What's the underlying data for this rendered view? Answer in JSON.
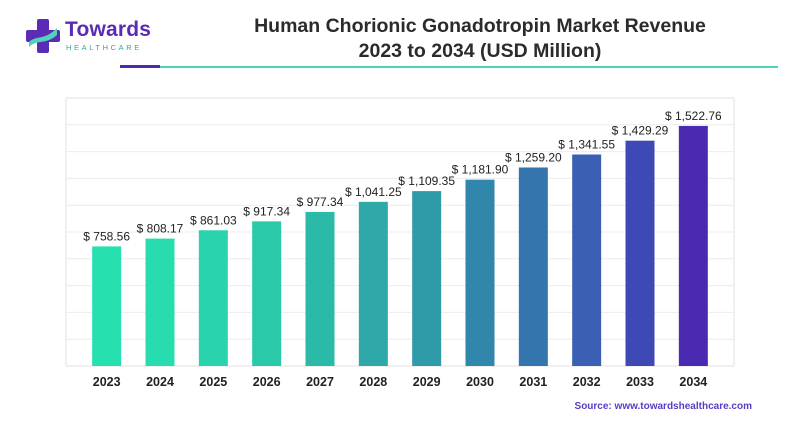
{
  "brand": {
    "name": "Towards",
    "tagline": "HEALTHCARE",
    "colors": {
      "purple": "#5b2bb6",
      "teal": "#2aa9a5"
    }
  },
  "title": {
    "line1": "Human Chorionic Gonadotropin Market Revenue",
    "line2": "2023 to 2034 (USD Million)"
  },
  "source": "Source: www.towardshealthcare.com",
  "chart_data": {
    "type": "bar",
    "categories": [
      "2023",
      "2024",
      "2025",
      "2026",
      "2027",
      "2028",
      "2029",
      "2030",
      "2031",
      "2032",
      "2033",
      "2034"
    ],
    "values": [
      758.56,
      808.17,
      861.03,
      917.34,
      977.34,
      1041.25,
      1109.35,
      1181.9,
      1259.2,
      1341.55,
      1429.29,
      1522.76
    ],
    "data_labels": [
      "$ 758.56",
      "$ 808.17",
      "$ 861.03",
      "$ 917.34",
      "$ 977.34",
      "$ 1,041.25",
      "$ 1,109.35",
      "$ 1,181.90",
      "$ 1,259.20",
      "$ 1,341.55",
      "$ 1,429.29",
      "$ 1,522.76"
    ],
    "bar_colors": [
      "#27e0b0",
      "#27dcae",
      "#28d3ad",
      "#29c9aa",
      "#2bbaa8",
      "#2ea9a7",
      "#2f9aa8",
      "#3187ab",
      "#3575ae",
      "#3a5fb3",
      "#3f49b5",
      "#4a2ab0"
    ],
    "ylim": [
      0,
      1700
    ],
    "grid": true,
    "title": "",
    "xlabel": "",
    "ylabel": ""
  }
}
